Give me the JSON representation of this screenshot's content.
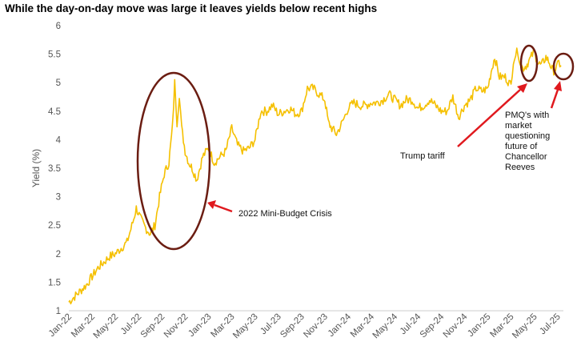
{
  "title": "While the day-on-day move was large it leaves yields below recent highs",
  "colors": {
    "series": "#f5c000",
    "ellipse": "#6b1d12",
    "arrow": "#e0191e",
    "tick_text": "#555555"
  },
  "chart_data": {
    "type": "line",
    "title": "While the day-on-day move was large it leaves yields below recent highs",
    "xlabel": "",
    "ylabel": "Yield (%)",
    "ylim": [
      1,
      6
    ],
    "yticks": [
      1,
      1.5,
      2,
      2.5,
      3,
      3.5,
      4,
      4.5,
      5,
      5.5,
      6
    ],
    "x_range_months": [
      0,
      42.5
    ],
    "x_tick_labels": [
      "Jan-22",
      "Mar-22",
      "May-22",
      "Jul-22",
      "Sep-22",
      "Nov-22",
      "Jan-23",
      "Mar-23",
      "May-23",
      "Jul-23",
      "Sep-23",
      "Nov-23",
      "Jan-24",
      "Mar-24",
      "May-24",
      "Jul-24",
      "Sep-24",
      "Nov-24",
      "Jan-25",
      "Mar-25",
      "May-25",
      "Jul-25"
    ],
    "x_tick_months": [
      0,
      2,
      4,
      6,
      8,
      10,
      12,
      14,
      16,
      18,
      20,
      22,
      24,
      26,
      28,
      30,
      32,
      34,
      36,
      38,
      40,
      42
    ],
    "series": [
      {
        "name": "Yield",
        "x": [
          0,
          0.5,
          1,
          1.5,
          2,
          2.5,
          3,
          3.5,
          4,
          4.5,
          5,
          5.5,
          5.8,
          6.2,
          6.6,
          7,
          7.4,
          7.8,
          8.2,
          8.6,
          8.9,
          9.1,
          9.3,
          9.5,
          9.7,
          10,
          10.3,
          10.6,
          11,
          11.5,
          12,
          12.5,
          13,
          13.5,
          14,
          14.5,
          15,
          15.5,
          16,
          16.5,
          17,
          17.5,
          18,
          18.5,
          19,
          19.5,
          20,
          20.5,
          21,
          21.5,
          22,
          22.3,
          22.6,
          23,
          23.5,
          24,
          24.5,
          25,
          25.5,
          26,
          26.5,
          27,
          27.5,
          28,
          28.5,
          29,
          29.5,
          30,
          30.5,
          31,
          31.5,
          32,
          32.5,
          33,
          33.5,
          34,
          34.5,
          35,
          35.5,
          36,
          36.3,
          36.6,
          37,
          37.5,
          38,
          38.2,
          38.4,
          38.6,
          38.8,
          39,
          39.3,
          39.6,
          40,
          40.3,
          40.6,
          41,
          41.3,
          41.6,
          41.9,
          42.1,
          42.3
        ],
        "values": [
          1.15,
          1.25,
          1.35,
          1.45,
          1.6,
          1.75,
          1.85,
          1.95,
          2.0,
          2.1,
          2.2,
          2.55,
          2.8,
          2.6,
          2.45,
          2.35,
          2.5,
          3.0,
          3.4,
          3.6,
          4.2,
          5.0,
          4.3,
          4.8,
          4.2,
          3.8,
          3.6,
          3.5,
          3.3,
          3.7,
          3.85,
          3.6,
          3.7,
          3.8,
          4.2,
          3.9,
          3.8,
          3.85,
          4.0,
          4.5,
          4.5,
          4.6,
          4.45,
          4.5,
          4.55,
          4.45,
          4.5,
          4.9,
          4.9,
          4.8,
          4.7,
          4.3,
          4.2,
          4.1,
          4.3,
          4.55,
          4.65,
          4.6,
          4.6,
          4.65,
          4.65,
          4.7,
          4.8,
          4.7,
          4.6,
          4.7,
          4.7,
          4.55,
          4.6,
          4.7,
          4.6,
          4.5,
          4.5,
          4.75,
          4.4,
          4.6,
          4.7,
          4.9,
          4.85,
          4.9,
          5.2,
          5.45,
          5.1,
          5.1,
          4.95,
          5.4,
          5.5,
          5.55,
          5.35,
          5.25,
          5.3,
          5.4,
          5.55,
          5.35,
          5.3,
          5.45,
          5.35,
          5.2,
          5.25,
          5.35,
          5.3
        ]
      }
    ],
    "annotations": {
      "minibudget": "2022 Mini-Budget Crisis",
      "tariff": "Trump tariff",
      "pmq": [
        "PMQ's with",
        "market",
        "questioning",
        "future of",
        "Chancellor",
        "Reeves"
      ]
    }
  }
}
